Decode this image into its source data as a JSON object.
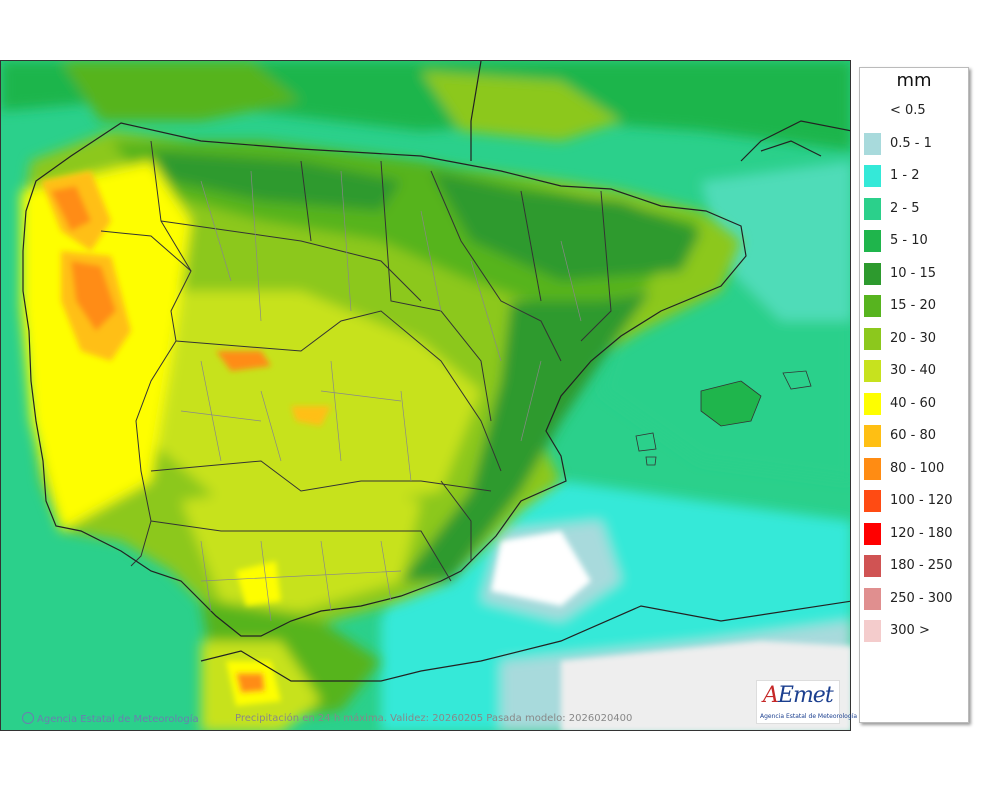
{
  "map": {
    "legend_unit": "mm",
    "legend": [
      {
        "label": "< 0.5",
        "color": "#ffffff"
      },
      {
        "label": "0.5 - 1",
        "color": "#a8dadc"
      },
      {
        "label": "1 - 2",
        "color": "#34e9d8"
      },
      {
        "label": "2 - 5",
        "color": "#2bd08b"
      },
      {
        "label": "5 - 10",
        "color": "#1fb54c"
      },
      {
        "label": "10 - 15",
        "color": "#2d9a2e"
      },
      {
        "label": "15 - 20",
        "color": "#57b41f"
      },
      {
        "label": "20 - 30",
        "color": "#8cc81d"
      },
      {
        "label": "30 - 40",
        "color": "#c7e21e"
      },
      {
        "label": "40 - 60",
        "color": "#fefe00"
      },
      {
        "label": "60 - 80",
        "color": "#ffbf13"
      },
      {
        "label": "80 - 100",
        "color": "#ff8c13"
      },
      {
        "label": "100 - 120",
        "color": "#ff4b13"
      },
      {
        "label": "120 - 180",
        "color": "#ff0000"
      },
      {
        "label": "180 - 250",
        "color": "#d05353"
      },
      {
        "label": "250 - 300",
        "color": "#e08f8f"
      },
      {
        "label": "300 >",
        "color": "#f4cccc"
      }
    ],
    "footer": "Precipitación en 24 h máxima. Validez: 20260205 Pasada modelo: 2026020400",
    "agency": "Agencia Estatal de Meteorología",
    "logo": {
      "brand_a": "A",
      "brand_rest": "Emet",
      "subtitle": "Agencia Estatal de Meteorología"
    }
  }
}
